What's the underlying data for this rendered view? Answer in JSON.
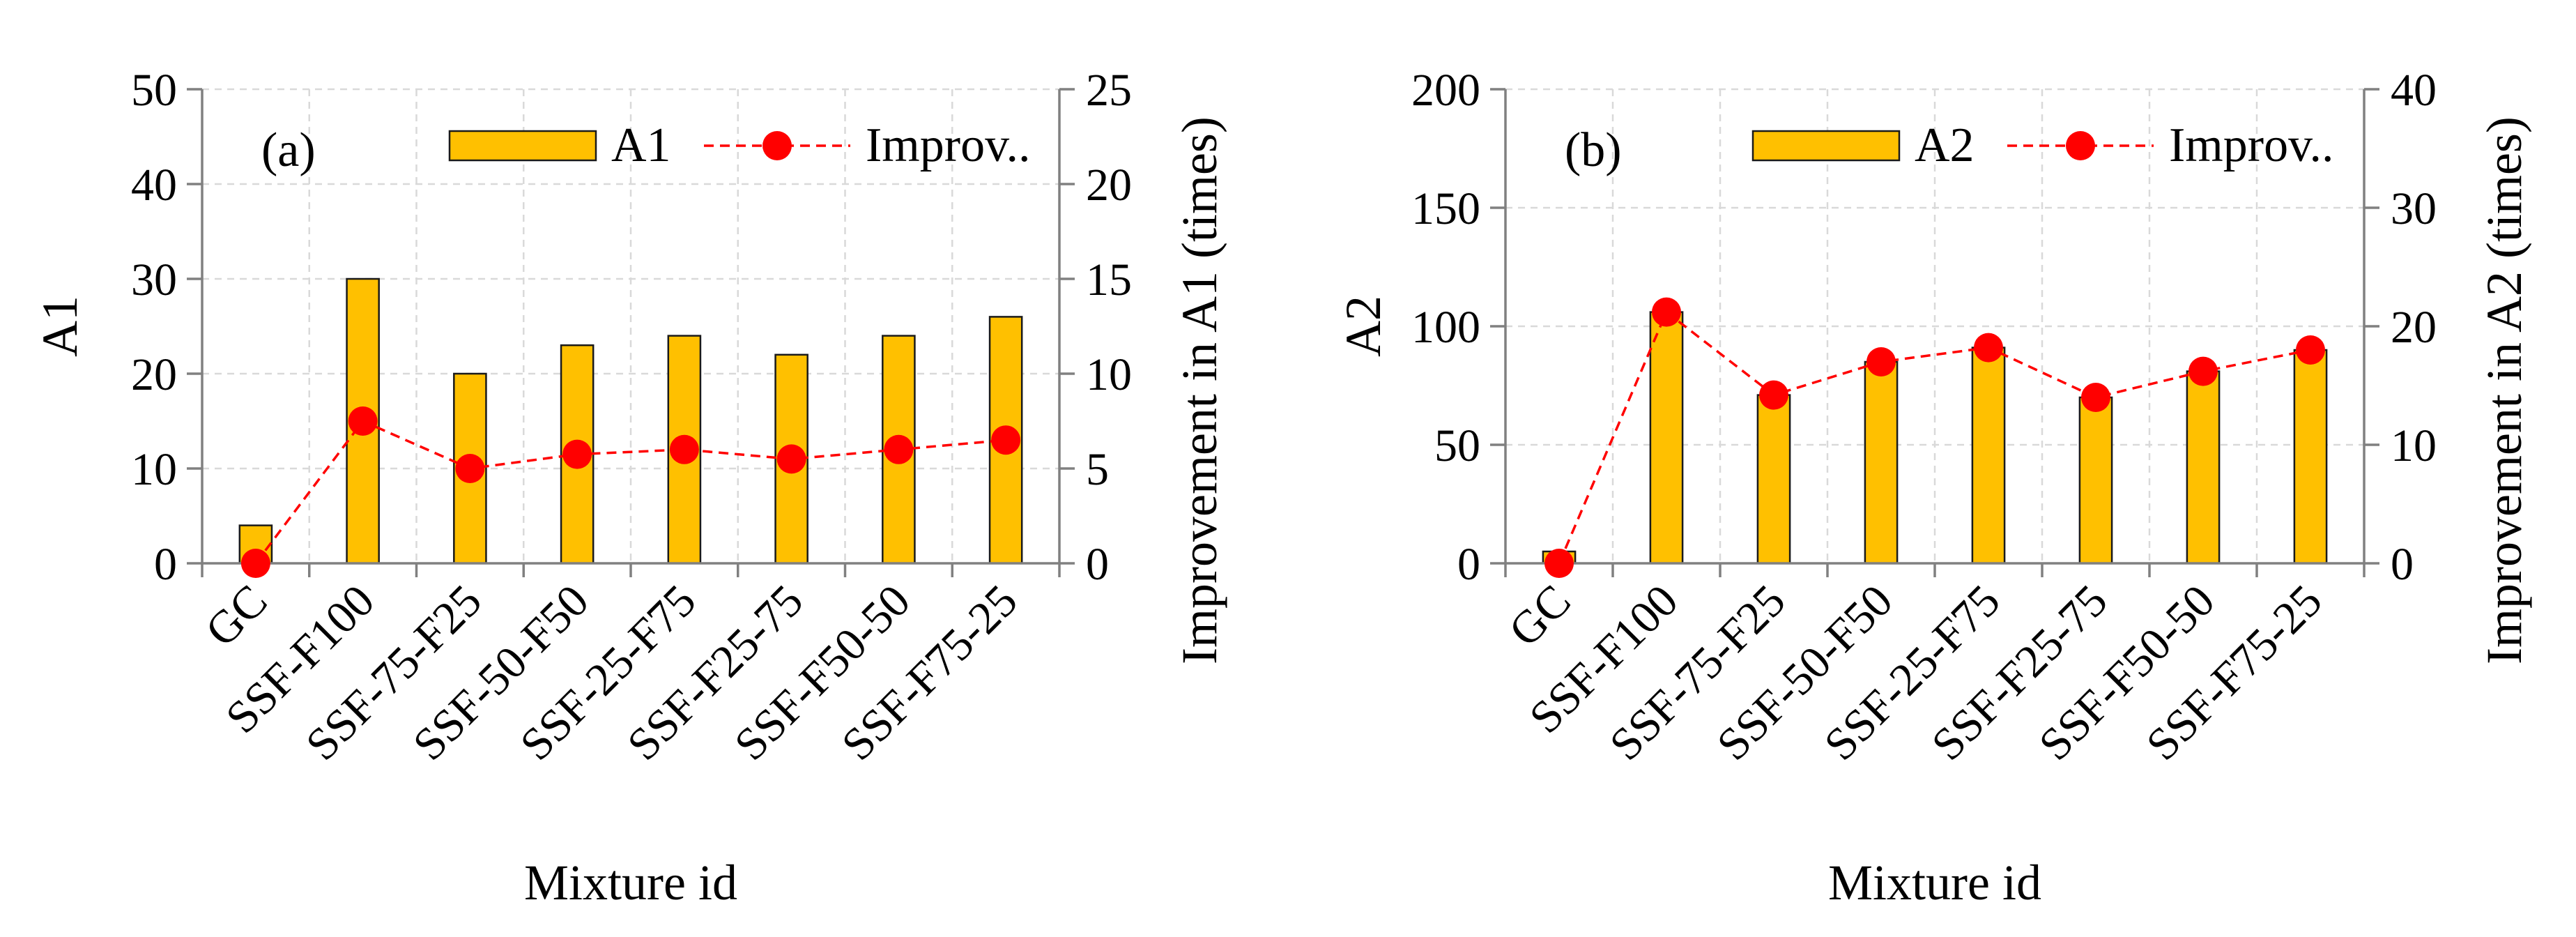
{
  "colors": {
    "bar": "#FFC000",
    "line": "#FF0000"
  },
  "chart_data": [
    {
      "type": "bar",
      "panel_label": "(a)",
      "categories": [
        "GC",
        "SSF-F100",
        "SSF-75-F25",
        "SSF-50-F50",
        "SSF-25-F75",
        "SSF-F25-75",
        "SSF-F50-50",
        "SSF-F75-25"
      ],
      "xlabel": "Mixture id",
      "ylabel": "A1",
      "y2label": "Improvement in A1 (times)",
      "ylim": [
        0,
        50
      ],
      "yticks": [
        "0",
        "10",
        "20",
        "30",
        "40",
        "50"
      ],
      "y2lim": [
        0,
        25
      ],
      "y2ticks": [
        "0",
        "5",
        "10",
        "15",
        "20",
        "25"
      ],
      "grid": true,
      "legend_position": "top-right",
      "series": [
        {
          "name": "A1",
          "kind": "bar",
          "axis": "left",
          "values": [
            4,
            30,
            20,
            23,
            24,
            22,
            24,
            26
          ]
        },
        {
          "name": "Improv..",
          "kind": "line",
          "axis": "right",
          "values": [
            0,
            7.5,
            5.0,
            5.75,
            6.0,
            5.5,
            6.0,
            6.5
          ]
        }
      ]
    },
    {
      "type": "bar",
      "panel_label": "(b)",
      "categories": [
        "GC",
        "SSF-F100",
        "SSF-75-F25",
        "SSF-50-F50",
        "SSF-25-F75",
        "SSF-F25-75",
        "SSF-F50-50",
        "SSF-F75-25"
      ],
      "xlabel": "Mixture id",
      "ylabel": "A2",
      "y2label": "Improvement in A2 (times)",
      "ylim": [
        0,
        200
      ],
      "yticks": [
        "0",
        "50",
        "100",
        "150",
        "200"
      ],
      "y2lim": [
        0,
        40
      ],
      "y2ticks": [
        "0",
        "10",
        "20",
        "30",
        "40"
      ],
      "grid": true,
      "legend_position": "top-right",
      "series": [
        {
          "name": "A2",
          "kind": "bar",
          "axis": "left",
          "values": [
            5,
            106,
            71,
            85,
            91,
            70,
            81,
            90
          ]
        },
        {
          "name": "Improv..",
          "kind": "line",
          "axis": "right",
          "values": [
            0,
            21.2,
            14.2,
            17.0,
            18.2,
            14.0,
            16.2,
            18.0
          ]
        }
      ]
    }
  ]
}
